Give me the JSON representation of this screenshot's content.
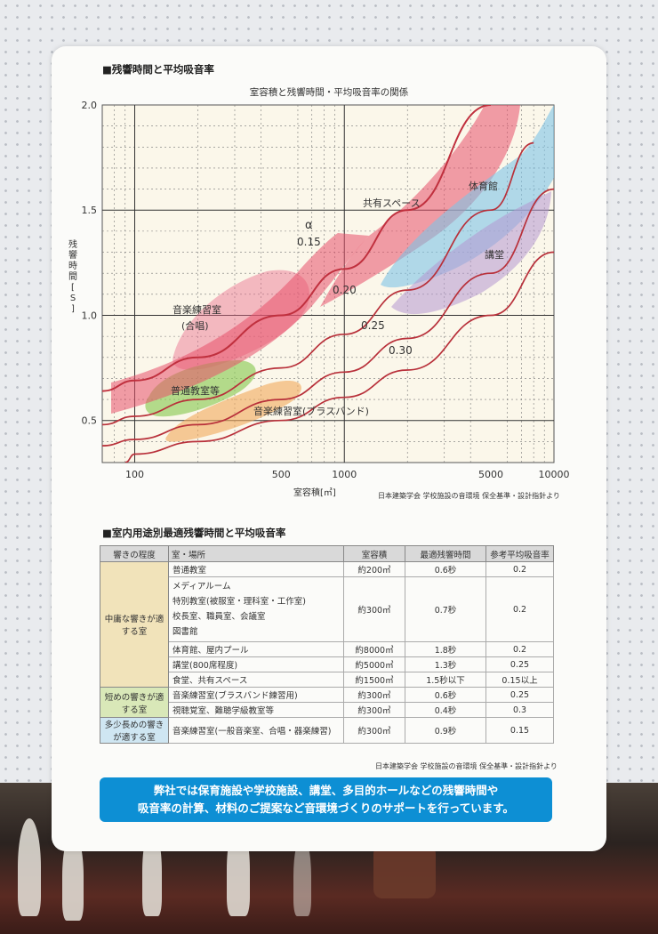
{
  "section1_title": "■残響時間と平均吸音率",
  "section2_title": "■室内用途別最適残響時間と平均吸音率",
  "source_note_1": "日本建築学会 学校施設の音環境 保全基準・設計指針より",
  "source_note_2": "日本建築学会 学校施設の音環境 保全基準・設計指針より",
  "chart_data": {
    "type": "line",
    "title": "室容積と残響時間・平均吸音率の関係",
    "xlabel": "室容積[㎥]",
    "ylabel": "残響時間[S]",
    "x_scale": "log",
    "xlim": [
      70,
      10000
    ],
    "ylim": [
      0.3,
      2.0
    ],
    "x_ticks": [
      100,
      500,
      1000,
      5000,
      10000
    ],
    "x_tick_labels": [
      "100",
      "500",
      "1000",
      "5000",
      "10000"
    ],
    "y_ticks": [
      0.5,
      1.0,
      1.5,
      2.0
    ],
    "y_tick_labels": [
      "0.5",
      "1.0",
      "1.5",
      "2.0"
    ],
    "alpha_symbol": "α",
    "series": [
      {
        "name": "0.15",
        "color": "#c0303e",
        "x": [
          70,
          100,
          200,
          500,
          1000,
          2000,
          5000
        ],
        "y": [
          0.64,
          0.69,
          0.8,
          1.0,
          1.22,
          1.5,
          2.0
        ]
      },
      {
        "name": "0.20",
        "color": "#b8303a",
        "x": [
          70,
          100,
          200,
          500,
          1000,
          2000,
          5000,
          8000
        ],
        "y": [
          0.48,
          0.52,
          0.6,
          0.75,
          0.91,
          1.12,
          1.5,
          1.82
        ]
      },
      {
        "name": "0.25",
        "color": "#b8303a",
        "x": [
          70,
          100,
          200,
          500,
          1000,
          2000,
          5000,
          10000
        ],
        "y": [
          0.38,
          0.41,
          0.48,
          0.6,
          0.73,
          0.89,
          1.2,
          1.6
        ]
      },
      {
        "name": "0.30",
        "color": "#b8303a",
        "x": [
          90,
          100,
          200,
          500,
          1000,
          2000,
          5000,
          10000
        ],
        "y": [
          0.3,
          0.34,
          0.4,
          0.5,
          0.61,
          0.74,
          1.0,
          1.3
        ]
      }
    ],
    "regions": [
      {
        "label": "共有スペース",
        "color": "#e8506a"
      },
      {
        "label": "体育館",
        "color": "#7ec3e6"
      },
      {
        "label": "講堂",
        "color": "#b497d0"
      },
      {
        "label": "音楽練習室",
        "label2": "(合唱)",
        "color": "#e86a8c"
      },
      {
        "label": "普通教室等",
        "color": "#8ccb56"
      },
      {
        "label": "音楽練習室(ブラスバンド)",
        "color": "#f2a85a"
      }
    ]
  },
  "table": {
    "headers": [
      "響きの程度",
      "室・場所",
      "室容積",
      "最適残響時間",
      "参考平均吸音率"
    ],
    "groups": [
      {
        "label": "中庸な響きが適する室",
        "rows": [
          {
            "room": "普通教室",
            "volume": "約200㎥",
            "time": "0.6秒",
            "alpha": "0.2"
          },
          {
            "room": "メディアルーム\n特別教室(被服室・理科室・工作室)\n校長室、職員室、会議室\n図書館",
            "volume": "約300㎥",
            "time": "0.7秒",
            "alpha": "0.2"
          },
          {
            "room": "体育館、屋内プール",
            "volume": "約8000㎥",
            "time": "1.8秒",
            "alpha": "0.2"
          },
          {
            "room": "講堂(800席程度)",
            "volume": "約5000㎥",
            "time": "1.3秒",
            "alpha": "0.25"
          },
          {
            "room": "食堂、共有スペース",
            "volume": "約1500㎥",
            "time": "1.5秒以下",
            "alpha": "0.15以上"
          }
        ]
      },
      {
        "label": "短めの響きが適する室",
        "rows": [
          {
            "room": "音楽練習室(ブラスバンド練習用)",
            "volume": "約300㎥",
            "time": "0.6秒",
            "alpha": "0.25"
          },
          {
            "room": "視聴覚室、難聴学級教室等",
            "volume": "約300㎥",
            "time": "0.4秒",
            "alpha": "0.3"
          }
        ]
      },
      {
        "label": "多少長めの響きが適する室",
        "rows": [
          {
            "room": "音楽練習室(一般音楽室、合唱・器楽練習)",
            "volume": "約300㎥",
            "time": "0.9秒",
            "alpha": "0.15"
          }
        ]
      }
    ]
  },
  "banner_line1": "弊社では保育施設や学校施設、講堂、多目的ホールなどの残響時間や",
  "banner_line2": "吸音率の計算、材料のご提案など音環境づくりのサポートを行っています。"
}
